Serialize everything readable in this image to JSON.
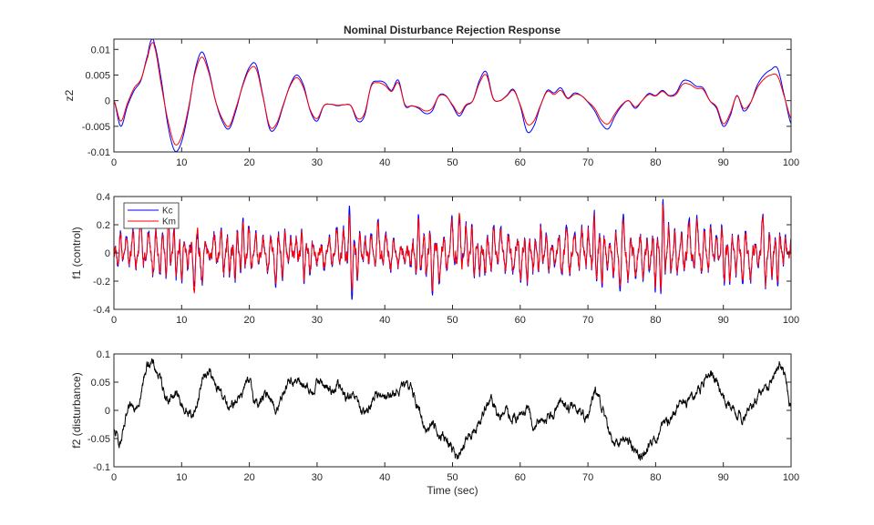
{
  "figure": {
    "title": "Nominal Disturbance Rejection Response"
  },
  "colors": {
    "kc": "#0000ff",
    "km": "#ff0000",
    "disturbance": "#000000",
    "axis": "#262626"
  },
  "chart_data": [
    {
      "type": "line",
      "title": "Nominal Disturbance Rejection Response",
      "xlabel": "",
      "ylabel": "z2",
      "xlim": [
        0,
        100
      ],
      "ylim": [
        -0.01,
        0.012
      ],
      "xticks": [
        0,
        10,
        20,
        30,
        40,
        50,
        60,
        70,
        80,
        90,
        100
      ],
      "xtick_labels": [
        "0",
        "10",
        "20",
        "30",
        "40",
        "50",
        "60",
        "70",
        "80",
        "90",
        "100"
      ],
      "yticks": [
        -0.01,
        -0.005,
        0,
        0.005,
        0.01
      ],
      "ytick_labels": [
        "-0.01",
        "-0.005",
        "0",
        "0.005",
        "0.01"
      ],
      "grid": false,
      "legend": null,
      "x": [
        0,
        1,
        2,
        3,
        4,
        5,
        5.5,
        6,
        7,
        8,
        9,
        10,
        11,
        12,
        13,
        14,
        15,
        16,
        17,
        18,
        19,
        20,
        21,
        22,
        23,
        24,
        25,
        26,
        27,
        28,
        29,
        30,
        31,
        32,
        33,
        34,
        35,
        36,
        37,
        38,
        39,
        40,
        41,
        42,
        43,
        44,
        45,
        46,
        47,
        48,
        49,
        50,
        51,
        52,
        53,
        54,
        55,
        56,
        57,
        58,
        59,
        60,
        61,
        62,
        63,
        64,
        65,
        66,
        67,
        68,
        69,
        70,
        71,
        72,
        73,
        74,
        75,
        76,
        77,
        78,
        79,
        80,
        81,
        82,
        83,
        84,
        85,
        86,
        87,
        88,
        89,
        90,
        91,
        92,
        93,
        94,
        95,
        96,
        97,
        98,
        99,
        100
      ],
      "series": [
        {
          "name": "Kc",
          "color": "#0000ff",
          "values": [
            0.0,
            -0.005,
            -0.001,
            0.002,
            0.004,
            0.009,
            0.0118,
            0.011,
            0.004,
            -0.005,
            -0.0098,
            -0.008,
            -0.002,
            0.006,
            0.0095,
            0.006,
            0.0,
            -0.004,
            -0.0055,
            -0.002,
            0.003,
            0.0065,
            0.007,
            0.001,
            -0.0055,
            -0.005,
            -0.001,
            0.003,
            0.005,
            0.003,
            -0.002,
            -0.004,
            -0.001,
            -0.0007,
            -0.001,
            -0.0008,
            -0.001,
            -0.004,
            -0.003,
            0.003,
            0.0038,
            0.0035,
            0.002,
            0.004,
            -0.001,
            -0.001,
            -0.0015,
            -0.0025,
            -0.002,
            0.001,
            0.001,
            -0.001,
            -0.003,
            -0.001,
            0.0,
            0.004,
            0.0056,
            0.0005,
            0.0,
            0.001,
            0.0022,
            -0.001,
            -0.006,
            -0.005,
            -0.001,
            0.002,
            0.0015,
            0.0025,
            0.0005,
            0.0015,
            0.001,
            -0.0003,
            -0.002,
            -0.0045,
            -0.0055,
            -0.003,
            -0.001,
            0.0,
            -0.0015,
            0.0,
            0.0014,
            0.001,
            0.002,
            0.001,
            0.0015,
            0.0038,
            0.0038,
            0.0028,
            0.0025,
            0.0,
            -0.0015,
            -0.005,
            -0.003,
            0.001,
            -0.002,
            -0.0005,
            0.003,
            0.005,
            0.006,
            0.0063,
            0.001,
            -0.0045
          ]
        },
        {
          "name": "Km",
          "color": "#ff0000",
          "values": [
            0.0,
            -0.004,
            -0.0005,
            0.0025,
            0.0042,
            0.0085,
            0.011,
            0.0105,
            0.003,
            -0.004,
            -0.0085,
            -0.007,
            -0.0015,
            0.0055,
            0.0085,
            0.0055,
            0.0,
            -0.0035,
            -0.005,
            -0.0015,
            0.0028,
            0.006,
            0.0062,
            0.0008,
            -0.005,
            -0.0045,
            -0.0008,
            0.0028,
            0.0045,
            0.0025,
            -0.0018,
            -0.0035,
            -0.001,
            -0.0007,
            -0.0009,
            -0.0008,
            -0.001,
            -0.0035,
            -0.0025,
            0.0028,
            0.0035,
            0.003,
            0.0018,
            0.0035,
            -0.0008,
            -0.001,
            -0.0013,
            -0.002,
            -0.0015,
            0.0009,
            0.0009,
            -0.0008,
            -0.0025,
            -0.0008,
            0.0,
            0.0035,
            0.005,
            0.0004,
            0.0,
            0.0009,
            0.002,
            -0.0008,
            -0.0045,
            -0.004,
            -0.0009,
            0.0018,
            0.0012,
            0.002,
            0.0004,
            0.0012,
            0.001,
            -0.0002,
            -0.0015,
            -0.0038,
            -0.0045,
            -0.0025,
            -0.0008,
            0.0,
            -0.0012,
            0.0,
            0.0012,
            0.0009,
            0.0018,
            0.0009,
            0.0012,
            0.0032,
            0.0032,
            0.0024,
            0.0022,
            0.0,
            -0.0012,
            -0.0045,
            -0.0025,
            0.0009,
            -0.0015,
            -0.0004,
            0.0025,
            0.0042,
            0.005,
            0.0048,
            0.0008,
            -0.0035
          ]
        }
      ]
    },
    {
      "type": "line",
      "title": "",
      "xlabel": "",
      "ylabel": "f1 (control)",
      "xlim": [
        0,
        100
      ],
      "ylim": [
        -0.4,
        0.4
      ],
      "xticks": [
        0,
        10,
        20,
        30,
        40,
        50,
        60,
        70,
        80,
        90,
        100
      ],
      "xtick_labels": [
        "0",
        "10",
        "20",
        "30",
        "40",
        "50",
        "60",
        "70",
        "80",
        "90",
        "100"
      ],
      "yticks": [
        -0.4,
        -0.2,
        0,
        0.2,
        0.4
      ],
      "ytick_labels": [
        "-0.4",
        "-0.2",
        "0",
        "0.2",
        "0.4"
      ],
      "grid": false,
      "legend": "top-left",
      "x": [
        0,
        1,
        2,
        3,
        4,
        5,
        6,
        7,
        8,
        9,
        10,
        11,
        12,
        13,
        14,
        15,
        16,
        17,
        18,
        19,
        20,
        21,
        22,
        23,
        24,
        25,
        26,
        27,
        28,
        29,
        30,
        31,
        32,
        33,
        34,
        35,
        36,
        37,
        38,
        39,
        40,
        41,
        42,
        43,
        44,
        45,
        46,
        47,
        48,
        49,
        50,
        51,
        52,
        53,
        54,
        55,
        56,
        57,
        58,
        59,
        60,
        61,
        62,
        63,
        64,
        65,
        66,
        67,
        68,
        69,
        70,
        71,
        72,
        73,
        74,
        75,
        76,
        77,
        78,
        79,
        80,
        81,
        82,
        83,
        84,
        85,
        86,
        87,
        88,
        89,
        90,
        91,
        92,
        93,
        94,
        95,
        96,
        97,
        98,
        99,
        100
      ],
      "series": [
        {
          "name": "Kc",
          "color": "#0000ff",
          "values": [
            0.0,
            0.15,
            -0.15,
            0.2,
            -0.25,
            0.17,
            -0.22,
            0.2,
            -0.28,
            0.23,
            -0.2,
            0.12,
            -0.25,
            0.22,
            -0.05,
            0.15,
            -0.2,
            0.18,
            -0.22,
            0.25,
            -0.2,
            0.15,
            -0.1,
            0.18,
            -0.25,
            0.2,
            -0.12,
            0.1,
            -0.2,
            0.15,
            -0.08,
            0.12,
            -0.15,
            0.2,
            -0.18,
            0.38,
            -0.2,
            0.12,
            -0.15,
            0.22,
            -0.18,
            0.15,
            -0.1,
            0.08,
            -0.12,
            0.25,
            -0.2,
            0.28,
            -0.22,
            0.18,
            -0.25,
            0.26,
            -0.2,
            0.22,
            -0.15,
            0.18,
            -0.22,
            0.2,
            -0.18,
            0.15,
            -0.2,
            0.22,
            -0.15,
            0.2,
            -0.18,
            0.12,
            -0.2,
            0.25,
            -0.15,
            0.2,
            -0.18,
            0.3,
            -0.25,
            0.12,
            -0.2,
            0.35,
            -0.22,
            0.18,
            -0.2,
            0.15,
            -0.25,
            0.4,
            -0.22,
            0.2,
            -0.18,
            0.25,
            -0.28,
            0.22,
            -0.2,
            0.15,
            -0.25,
            0.22,
            -0.18,
            0.25,
            -0.2,
            0.15,
            -0.32,
            0.2,
            -0.25,
            0.12,
            -0.1
          ]
        },
        {
          "name": "Km",
          "color": "#ff0000",
          "values": [
            0.0,
            0.13,
            -0.13,
            0.18,
            -0.22,
            0.15,
            -0.2,
            0.18,
            -0.25,
            0.2,
            -0.18,
            0.1,
            -0.3,
            0.2,
            -0.04,
            0.13,
            -0.18,
            0.16,
            -0.2,
            0.22,
            -0.18,
            0.13,
            -0.09,
            0.16,
            -0.22,
            0.18,
            -0.1,
            0.09,
            -0.18,
            0.13,
            -0.07,
            0.1,
            -0.13,
            0.18,
            -0.16,
            0.3,
            -0.18,
            0.1,
            -0.13,
            0.2,
            -0.16,
            0.13,
            -0.09,
            0.07,
            -0.1,
            0.22,
            -0.18,
            0.25,
            -0.2,
            0.16,
            -0.22,
            0.3,
            -0.18,
            0.2,
            -0.13,
            0.16,
            -0.2,
            0.18,
            -0.16,
            0.13,
            -0.18,
            0.2,
            -0.13,
            0.18,
            -0.16,
            0.1,
            -0.18,
            0.22,
            -0.13,
            0.18,
            -0.16,
            0.27,
            -0.22,
            0.1,
            -0.18,
            0.3,
            -0.2,
            0.16,
            -0.18,
            0.13,
            -0.22,
            0.36,
            -0.2,
            0.18,
            -0.16,
            0.22,
            -0.25,
            0.2,
            -0.18,
            0.13,
            -0.22,
            0.2,
            -0.16,
            0.22,
            -0.18,
            0.13,
            -0.3,
            0.18,
            -0.22,
            0.1,
            -0.09
          ]
        }
      ]
    },
    {
      "type": "line",
      "title": "",
      "xlabel": "Time (sec)",
      "ylabel": "f2 (disturbance)",
      "xlim": [
        0,
        100
      ],
      "ylim": [
        -0.1,
        0.1
      ],
      "xticks": [
        0,
        10,
        20,
        30,
        40,
        50,
        60,
        70,
        80,
        90,
        100
      ],
      "xtick_labels": [
        "0",
        "10",
        "20",
        "30",
        "40",
        "50",
        "60",
        "70",
        "80",
        "90",
        "100"
      ],
      "yticks": [
        -0.1,
        -0.05,
        0,
        0.05,
        0.1
      ],
      "ytick_labels": [
        "-0.1",
        "-0.05",
        "0",
        "0.05",
        "0.1"
      ],
      "grid": false,
      "legend": null,
      "x": [
        0,
        1,
        2,
        3,
        4,
        5,
        6,
        7,
        8,
        9,
        10,
        11,
        12,
        13,
        14,
        15,
        16,
        17,
        18,
        19,
        20,
        21,
        22,
        23,
        24,
        25,
        26,
        27,
        28,
        29,
        30,
        31,
        32,
        33,
        34,
        35,
        36,
        37,
        38,
        39,
        40,
        41,
        42,
        43,
        44,
        45,
        46,
        47,
        48,
        49,
        50,
        51,
        52,
        53,
        54,
        55,
        56,
        57,
        58,
        59,
        60,
        61,
        62,
        63,
        64,
        65,
        66,
        67,
        68,
        69,
        70,
        71,
        72,
        73,
        74,
        75,
        76,
        77,
        78,
        79,
        80,
        81,
        82,
        83,
        84,
        85,
        86,
        87,
        88,
        89,
        90,
        91,
        92,
        93,
        94,
        95,
        96,
        97,
        98,
        99,
        100
      ],
      "series": [
        {
          "name": "f2",
          "color": "#000000",
          "values": [
            -0.04,
            -0.055,
            -0.01,
            0.01,
            0.03,
            0.085,
            0.075,
            0.05,
            0.02,
            0.03,
            0.01,
            -0.005,
            0.0,
            0.05,
            0.07,
            0.04,
            0.03,
            0.0,
            0.02,
            0.035,
            0.045,
            0.015,
            0.02,
            0.03,
            0.0,
            0.035,
            0.055,
            0.05,
            0.045,
            0.03,
            0.05,
            0.045,
            0.035,
            0.045,
            0.025,
            0.02,
            0.015,
            -0.01,
            0.015,
            0.03,
            0.03,
            0.025,
            0.035,
            0.04,
            0.04,
            0.0,
            -0.03,
            -0.025,
            -0.04,
            -0.05,
            -0.07,
            -0.085,
            -0.055,
            -0.04,
            -0.02,
            0.01,
            0.01,
            -0.01,
            -0.005,
            -0.015,
            -0.01,
            0.0,
            -0.03,
            -0.02,
            -0.01,
            0.0,
            0.02,
            0.005,
            0.005,
            0.0,
            -0.01,
            0.03,
            0.01,
            -0.04,
            -0.06,
            -0.05,
            -0.055,
            -0.07,
            -0.08,
            -0.06,
            -0.05,
            -0.03,
            -0.02,
            0.0,
            0.01,
            0.02,
            0.03,
            0.05,
            0.07,
            0.055,
            0.025,
            0.005,
            0.0,
            -0.01,
            0.0,
            0.02,
            0.035,
            0.05,
            0.08,
            0.065,
            0.005
          ]
        }
      ]
    }
  ]
}
